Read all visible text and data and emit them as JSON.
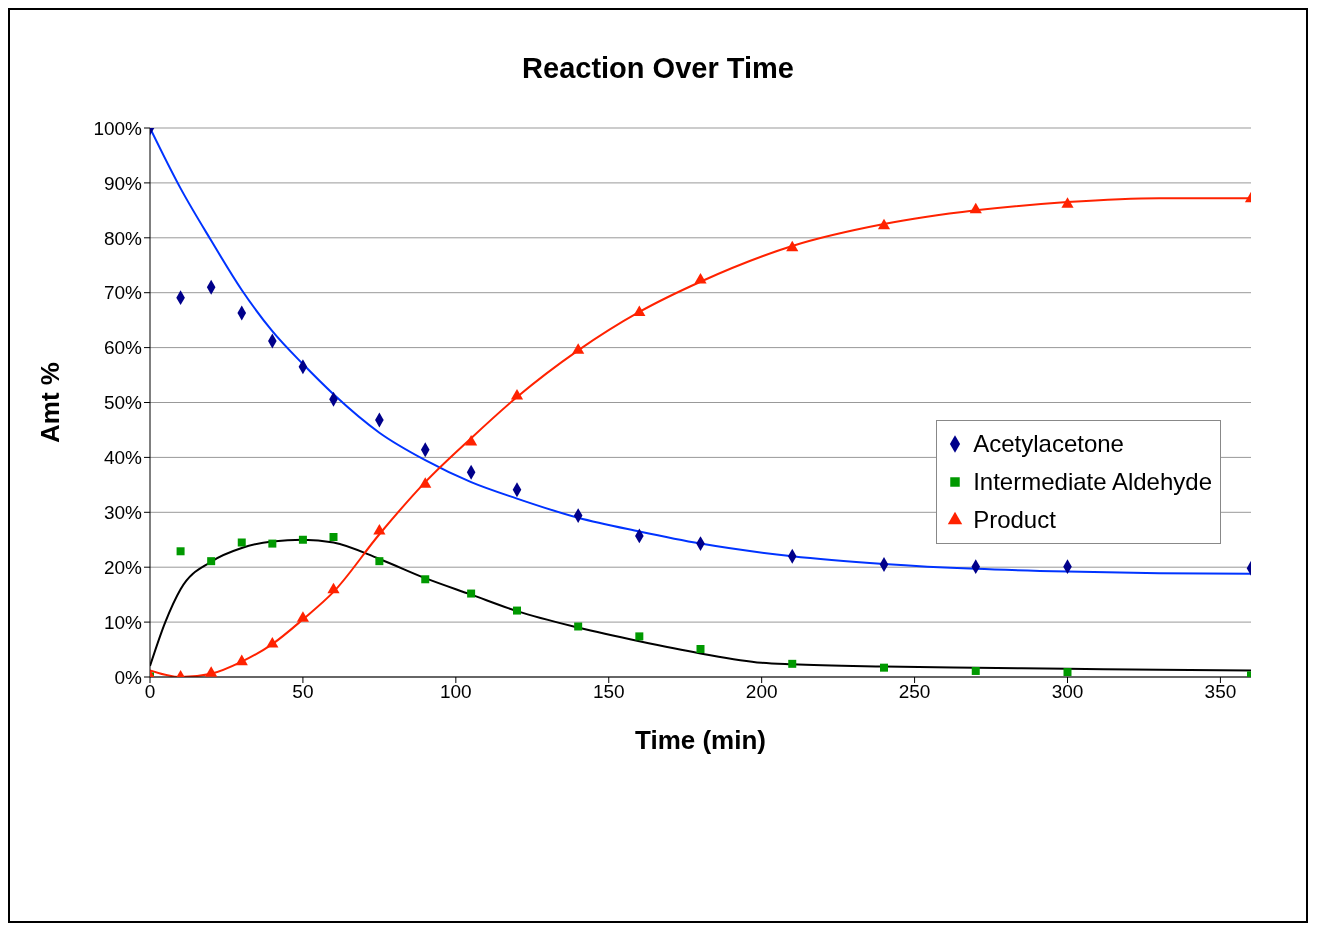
{
  "chart_data": {
    "type": "scatter",
    "title": "Reaction Over Time",
    "xlabel": "Time (min)",
    "ylabel": "Amt %",
    "xlim": [
      0,
      360
    ],
    "xticks": [
      0,
      50,
      100,
      150,
      200,
      250,
      300,
      350
    ],
    "ylim": [
      0,
      100
    ],
    "yticks": [
      {
        "value": 0,
        "label": "0%"
      },
      {
        "value": 10,
        "label": "10%"
      },
      {
        "value": 20,
        "label": "20%"
      },
      {
        "value": 30,
        "label": "30%"
      },
      {
        "value": 40,
        "label": "40%"
      },
      {
        "value": 50,
        "label": "50%"
      },
      {
        "value": 60,
        "label": "60%"
      },
      {
        "value": 70,
        "label": "70%"
      },
      {
        "value": 80,
        "label": "80%"
      },
      {
        "value": 90,
        "label": "90%"
      },
      {
        "value": 100,
        "label": "100%"
      }
    ],
    "grid": "y",
    "legend": "right",
    "series": [
      {
        "name": "Acetylacetone",
        "type": "scatter",
        "marker": "diamond",
        "color": "#00008b",
        "x": [
          0,
          10,
          20,
          30,
          40,
          50,
          60,
          75,
          90,
          105,
          120,
          140,
          160,
          180,
          210,
          240,
          270,
          300,
          360
        ],
        "values": [
          100,
          69.1,
          71.0,
          66.3,
          61.2,
          56.5,
          50.6,
          46.8,
          41.4,
          37.3,
          34.1,
          29.4,
          25.7,
          24.3,
          22.0,
          20.5,
          20.1,
          20.1,
          19.8
        ]
      },
      {
        "name": "Intermediate Aldehyde",
        "type": "scatter",
        "marker": "square",
        "color": "#009900",
        "x": [
          0,
          10,
          20,
          30,
          40,
          50,
          60,
          75,
          90,
          105,
          120,
          140,
          160,
          180,
          210,
          240,
          270,
          300,
          360
        ],
        "values": [
          0.1,
          22.9,
          21.1,
          24.5,
          24.3,
          25.0,
          25.5,
          21.1,
          17.8,
          15.2,
          12.1,
          9.2,
          7.4,
          5.1,
          2.4,
          1.7,
          1.1,
          0.9,
          0.3
        ]
      },
      {
        "name": "Product",
        "type": "scatter",
        "marker": "triangle",
        "color": "#ff2200",
        "x": [
          0,
          10,
          20,
          30,
          40,
          50,
          60,
          75,
          90,
          105,
          120,
          140,
          160,
          180,
          210,
          240,
          270,
          300,
          360
        ],
        "values": [
          0.1,
          0,
          0.7,
          2.8,
          6.0,
          10.7,
          15.9,
          26.6,
          35.1,
          42.8,
          51.2,
          59.5,
          66.4,
          72.3,
          78.2,
          82.2,
          85.1,
          86.1,
          87.1
        ]
      },
      {
        "type": "line",
        "marker": "none",
        "color": "#0033ff",
        "x": [
          0,
          10,
          20,
          30,
          40,
          50,
          60,
          75,
          90,
          105,
          120,
          140,
          160,
          180,
          210,
          240,
          270,
          300,
          330,
          360
        ],
        "values": [
          100,
          89,
          79.5,
          70.5,
          63,
          57,
          51.5,
          44.5,
          39.5,
          35.5,
          32.5,
          29,
          26.5,
          24.3,
          22,
          20.6,
          19.7,
          19.2,
          18.9,
          18.8
        ]
      },
      {
        "type": "line",
        "marker": "none",
        "color": "#000000",
        "x": [
          0,
          5,
          10,
          20,
          30,
          40,
          50,
          60,
          75,
          90,
          105,
          120,
          140,
          160,
          180,
          200,
          210,
          240,
          270,
          300,
          330,
          360
        ],
        "values": [
          2,
          10,
          16,
          21,
          23.5,
          24.7,
          25,
          24.5,
          21.5,
          18,
          15,
          12,
          9,
          6.5,
          4.3,
          2.6,
          2.3,
          1.9,
          1.7,
          1.5,
          1.3,
          1.2
        ]
      },
      {
        "type": "line",
        "marker": "none",
        "color": "#ff2200",
        "x": [
          0,
          10,
          20,
          30,
          40,
          50,
          60,
          75,
          90,
          105,
          120,
          140,
          160,
          180,
          210,
          240,
          270,
          300,
          330,
          360
        ],
        "values": [
          1.2,
          0,
          0.6,
          2.8,
          6,
          10.5,
          15.5,
          26,
          35.5,
          43.5,
          51,
          59.5,
          66.5,
          72,
          78.5,
          82.5,
          85,
          86.5,
          87.2,
          87.2
        ]
      }
    ]
  }
}
